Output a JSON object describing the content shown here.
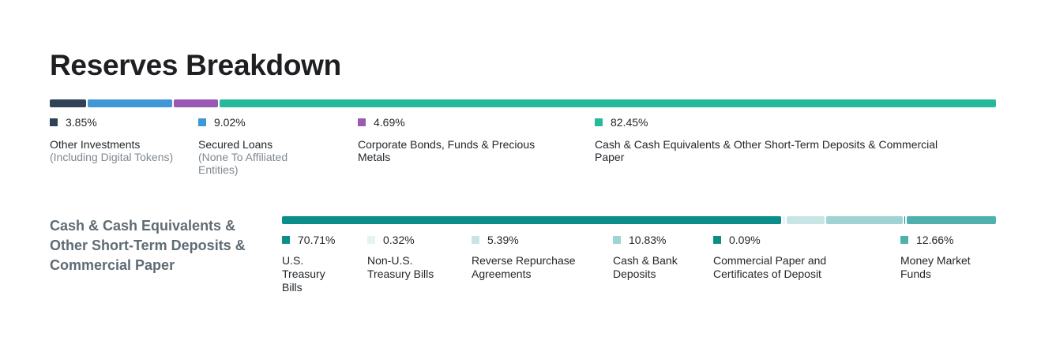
{
  "title": "Reserves Breakdown",
  "chart_data": [
    {
      "type": "bar",
      "orientation": "horizontal-stacked",
      "title": "Reserves Breakdown",
      "categories": [
        "Other Investments (Including Digital Tokens)",
        "Secured Loans (None To Affiliated Entities)",
        "Corporate Bonds, Funds & Precious Metals",
        "Cash & Cash Equivalents & Other Short-Term Deposits & Commercial Paper"
      ],
      "values": [
        3.85,
        9.02,
        4.69,
        82.45
      ],
      "items": [
        {
          "pct": "3.85%",
          "label": "Other Investments",
          "sublabel": "(Including Digital Tokens)",
          "color": "#2f4257",
          "value": 3.85
        },
        {
          "pct": "9.02%",
          "label": "Secured Loans",
          "sublabel": "(None To Affiliated Entities)",
          "color": "#3f97d8",
          "value": 9.02
        },
        {
          "pct": "4.69%",
          "label": "Corporate Bonds, Funds & Precious Metals",
          "sublabel": "",
          "color": "#9b59b6",
          "value": 4.69
        },
        {
          "pct": "82.45%",
          "label": "Cash & Cash Equivalents & Other Short-Term Deposits & Commercial Paper",
          "sublabel": "",
          "color": "#26b99a",
          "value": 82.45
        }
      ]
    },
    {
      "type": "bar",
      "orientation": "horizontal-stacked",
      "title": "Cash & Cash Equivalents & Other Short-Term Deposits & Commercial Paper",
      "categories": [
        "U.S. Treasury Bills",
        "Non-U.S. Treasury Bills",
        "Reverse Repurchase Agreements",
        "Cash & Bank Deposits",
        "Commercial Paper and Certificates of Deposit",
        "Money Market Funds"
      ],
      "values": [
        70.71,
        0.32,
        5.39,
        10.83,
        0.09,
        12.66
      ],
      "items": [
        {
          "pct": "70.71%",
          "label": "U.S. Treasury Bills",
          "color": "#0b8e8a",
          "value": 70.71
        },
        {
          "pct": "0.32%",
          "label": "Non-U.S. Treasury Bills",
          "color": "#e6f3f2",
          "value": 0.32
        },
        {
          "pct": "5.39%",
          "label": "Reverse Repurchase Agreements",
          "color": "#c8e5e6",
          "value": 5.39
        },
        {
          "pct": "10.83%",
          "label": "Cash & Bank Deposits",
          "color": "#9fd3d4",
          "value": 10.83
        },
        {
          "pct": "0.09%",
          "label": "Commercial Paper and Certificates of Deposit",
          "color": "#0b8e8a",
          "value": 0.09
        },
        {
          "pct": "12.66%",
          "label": "Money Market Funds",
          "color": "#4fb0ad",
          "value": 12.66
        }
      ]
    }
  ]
}
